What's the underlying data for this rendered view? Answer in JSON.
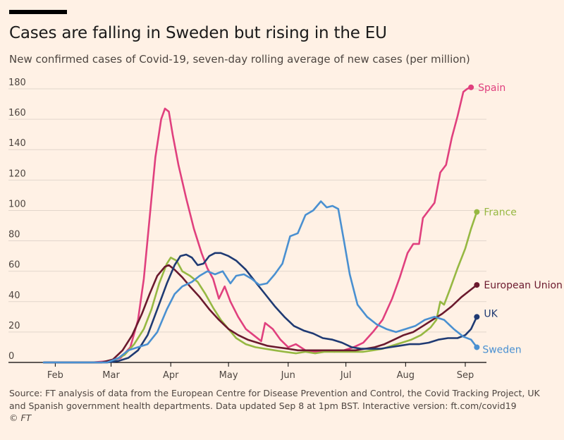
{
  "header": {
    "title": "Cases are falling in Sweden but rising in the EU",
    "subtitle": "New confirmed cases of Covid-19, seven-day rolling average of new cases (per million)"
  },
  "footer": {
    "source": "Source: FT analysis of data from the European Centre for Disease Prevention and Control, the Covid Tracking Project, UK and Spanish government health departments. Data updated Sep 8 at 1pm BST. Interactive version: ft.com/covid19",
    "copyright": "© FT"
  },
  "chart_data": {
    "type": "line",
    "xlabel": "",
    "ylabel": "",
    "ylim": [
      0,
      180
    ],
    "yticks": [
      0,
      20,
      40,
      60,
      80,
      100,
      120,
      140,
      160,
      180
    ],
    "xlim": [
      "2020-01-26",
      "2020-09-12"
    ],
    "xticks": [
      {
        "date": "2020-02-01",
        "label": "Feb"
      },
      {
        "date": "2020-03-01",
        "label": "Mar"
      },
      {
        "date": "2020-04-01",
        "label": "Apr"
      },
      {
        "date": "2020-05-01",
        "label": "May"
      },
      {
        "date": "2020-06-01",
        "label": "Jun"
      },
      {
        "date": "2020-07-01",
        "label": "Jul"
      },
      {
        "date": "2020-08-01",
        "label": "Aug"
      },
      {
        "date": "2020-09-01",
        "label": "Sep"
      }
    ],
    "grid": true,
    "legend": "direct labels at line ends",
    "series": [
      {
        "name": "Spain",
        "color": "#e0407e",
        "points": [
          [
            "2020-01-26",
            0
          ],
          [
            "2020-02-20",
            0
          ],
          [
            "2020-03-01",
            1
          ],
          [
            "2020-03-06",
            3
          ],
          [
            "2020-03-11",
            10
          ],
          [
            "2020-03-15",
            28
          ],
          [
            "2020-03-18",
            55
          ],
          [
            "2020-03-21",
            95
          ],
          [
            "2020-03-24",
            135
          ],
          [
            "2020-03-27",
            160
          ],
          [
            "2020-03-29",
            167
          ],
          [
            "2020-03-31",
            165
          ],
          [
            "2020-04-02",
            150
          ],
          [
            "2020-04-05",
            130
          ],
          [
            "2020-04-09",
            108
          ],
          [
            "2020-04-13",
            88
          ],
          [
            "2020-04-17",
            72
          ],
          [
            "2020-04-20",
            62
          ],
          [
            "2020-04-23",
            55
          ],
          [
            "2020-04-26",
            42
          ],
          [
            "2020-04-29",
            50
          ],
          [
            "2020-05-02",
            40
          ],
          [
            "2020-05-06",
            30
          ],
          [
            "2020-05-10",
            22
          ],
          [
            "2020-05-14",
            18
          ],
          [
            "2020-05-18",
            14
          ],
          [
            "2020-05-20",
            26
          ],
          [
            "2020-05-24",
            22
          ],
          [
            "2020-05-28",
            15
          ],
          [
            "2020-06-01",
            10
          ],
          [
            "2020-06-05",
            12
          ],
          [
            "2020-06-10",
            8
          ],
          [
            "2020-06-15",
            7
          ],
          [
            "2020-06-20",
            8
          ],
          [
            "2020-06-25",
            7
          ],
          [
            "2020-06-30",
            8
          ],
          [
            "2020-07-05",
            10
          ],
          [
            "2020-07-10",
            13
          ],
          [
            "2020-07-15",
            20
          ],
          [
            "2020-07-20",
            28
          ],
          [
            "2020-07-25",
            42
          ],
          [
            "2020-07-29",
            56
          ],
          [
            "2020-08-02",
            72
          ],
          [
            "2020-08-05",
            78
          ],
          [
            "2020-08-08",
            78
          ],
          [
            "2020-08-10",
            95
          ],
          [
            "2020-08-13",
            100
          ],
          [
            "2020-08-16",
            105
          ],
          [
            "2020-08-19",
            125
          ],
          [
            "2020-08-22",
            130
          ],
          [
            "2020-08-25",
            148
          ],
          [
            "2020-08-28",
            162
          ],
          [
            "2020-08-31",
            178
          ],
          [
            "2020-09-02",
            180
          ],
          [
            "2020-09-04",
            181
          ]
        ]
      },
      {
        "name": "France",
        "color": "#96b842",
        "points": [
          [
            "2020-01-26",
            0
          ],
          [
            "2020-02-25",
            0
          ],
          [
            "2020-03-02",
            1
          ],
          [
            "2020-03-08",
            5
          ],
          [
            "2020-03-13",
            12
          ],
          [
            "2020-03-18",
            22
          ],
          [
            "2020-03-22",
            35
          ],
          [
            "2020-03-26",
            52
          ],
          [
            "2020-03-30",
            65
          ],
          [
            "2020-04-01",
            69
          ],
          [
            "2020-04-04",
            67
          ],
          [
            "2020-04-07",
            60
          ],
          [
            "2020-04-11",
            57
          ],
          [
            "2020-04-15",
            53
          ],
          [
            "2020-04-19",
            45
          ],
          [
            "2020-04-23",
            36
          ],
          [
            "2020-04-27",
            28
          ],
          [
            "2020-05-01",
            22
          ],
          [
            "2020-05-05",
            16
          ],
          [
            "2020-05-10",
            12
          ],
          [
            "2020-05-15",
            10
          ],
          [
            "2020-05-20",
            9
          ],
          [
            "2020-05-25",
            8
          ],
          [
            "2020-05-30",
            7
          ],
          [
            "2020-06-05",
            6
          ],
          [
            "2020-06-10",
            7
          ],
          [
            "2020-06-15",
            6
          ],
          [
            "2020-06-20",
            7
          ],
          [
            "2020-06-25",
            7
          ],
          [
            "2020-06-30",
            7
          ],
          [
            "2020-07-05",
            7
          ],
          [
            "2020-07-10",
            7
          ],
          [
            "2020-07-15",
            8
          ],
          [
            "2020-07-20",
            9
          ],
          [
            "2020-07-25",
            11
          ],
          [
            "2020-07-30",
            13
          ],
          [
            "2020-08-04",
            15
          ],
          [
            "2020-08-09",
            18
          ],
          [
            "2020-08-14",
            23
          ],
          [
            "2020-08-17",
            28
          ],
          [
            "2020-08-19",
            40
          ],
          [
            "2020-08-21",
            38
          ],
          [
            "2020-08-24",
            48
          ],
          [
            "2020-08-28",
            62
          ],
          [
            "2020-09-01",
            75
          ],
          [
            "2020-09-04",
            88
          ],
          [
            "2020-09-07",
            99
          ]
        ]
      },
      {
        "name": "European Union",
        "color": "#6b1a2e",
        "points": [
          [
            "2020-01-26",
            0
          ],
          [
            "2020-02-25",
            0
          ],
          [
            "2020-03-02",
            2
          ],
          [
            "2020-03-07",
            8
          ],
          [
            "2020-03-12",
            18
          ],
          [
            "2020-03-17",
            32
          ],
          [
            "2020-03-21",
            45
          ],
          [
            "2020-03-25",
            57
          ],
          [
            "2020-03-29",
            63
          ],
          [
            "2020-03-31",
            64
          ],
          [
            "2020-04-03",
            61
          ],
          [
            "2020-04-07",
            56
          ],
          [
            "2020-04-11",
            50
          ],
          [
            "2020-04-16",
            43
          ],
          [
            "2020-04-21",
            35
          ],
          [
            "2020-04-26",
            28
          ],
          [
            "2020-05-01",
            22
          ],
          [
            "2020-05-06",
            18
          ],
          [
            "2020-05-11",
            15
          ],
          [
            "2020-05-16",
            13
          ],
          [
            "2020-05-21",
            11
          ],
          [
            "2020-05-26",
            10
          ],
          [
            "2020-06-01",
            9
          ],
          [
            "2020-06-06",
            8
          ],
          [
            "2020-06-11",
            8
          ],
          [
            "2020-06-16",
            8
          ],
          [
            "2020-06-21",
            8
          ],
          [
            "2020-06-26",
            8
          ],
          [
            "2020-07-01",
            8
          ],
          [
            "2020-07-06",
            8
          ],
          [
            "2020-07-11",
            9
          ],
          [
            "2020-07-16",
            10
          ],
          [
            "2020-07-21",
            12
          ],
          [
            "2020-07-26",
            15
          ],
          [
            "2020-07-31",
            18
          ],
          [
            "2020-08-05",
            20
          ],
          [
            "2020-08-10",
            24
          ],
          [
            "2020-08-15",
            28
          ],
          [
            "2020-08-20",
            32
          ],
          [
            "2020-08-25",
            37
          ],
          [
            "2020-08-30",
            43
          ],
          [
            "2020-09-04",
            48
          ],
          [
            "2020-09-07",
            51
          ]
        ]
      },
      {
        "name": "UK",
        "color": "#1f3a73",
        "points": [
          [
            "2020-01-26",
            0
          ],
          [
            "2020-02-28",
            0
          ],
          [
            "2020-03-05",
            1
          ],
          [
            "2020-03-10",
            3
          ],
          [
            "2020-03-15",
            8
          ],
          [
            "2020-03-20",
            18
          ],
          [
            "2020-03-25",
            35
          ],
          [
            "2020-03-30",
            52
          ],
          [
            "2020-04-03",
            64
          ],
          [
            "2020-04-06",
            70
          ],
          [
            "2020-04-09",
            71
          ],
          [
            "2020-04-12",
            69
          ],
          [
            "2020-04-15",
            64
          ],
          [
            "2020-04-18",
            65
          ],
          [
            "2020-04-21",
            70
          ],
          [
            "2020-04-24",
            72
          ],
          [
            "2020-04-27",
            72
          ],
          [
            "2020-05-01",
            70
          ],
          [
            "2020-05-05",
            67
          ],
          [
            "2020-05-10",
            61
          ],
          [
            "2020-05-15",
            53
          ],
          [
            "2020-05-20",
            45
          ],
          [
            "2020-05-25",
            37
          ],
          [
            "2020-05-30",
            30
          ],
          [
            "2020-06-04",
            24
          ],
          [
            "2020-06-09",
            21
          ],
          [
            "2020-06-14",
            19
          ],
          [
            "2020-06-19",
            16
          ],
          [
            "2020-06-24",
            15
          ],
          [
            "2020-06-29",
            13
          ],
          [
            "2020-07-04",
            10
          ],
          [
            "2020-07-09",
            9
          ],
          [
            "2020-07-14",
            9
          ],
          [
            "2020-07-19",
            9
          ],
          [
            "2020-07-24",
            10
          ],
          [
            "2020-07-29",
            11
          ],
          [
            "2020-08-03",
            12
          ],
          [
            "2020-08-08",
            12
          ],
          [
            "2020-08-13",
            13
          ],
          [
            "2020-08-18",
            15
          ],
          [
            "2020-08-23",
            16
          ],
          [
            "2020-08-28",
            16
          ],
          [
            "2020-09-01",
            18
          ],
          [
            "2020-09-04",
            22
          ],
          [
            "2020-09-07",
            30
          ]
        ]
      },
      {
        "name": "Sweden",
        "color": "#4a90d1",
        "points": [
          [
            "2020-01-26",
            0
          ],
          [
            "2020-02-28",
            0
          ],
          [
            "2020-03-05",
            3
          ],
          [
            "2020-03-10",
            8
          ],
          [
            "2020-03-15",
            10
          ],
          [
            "2020-03-20",
            12
          ],
          [
            "2020-03-25",
            20
          ],
          [
            "2020-03-30",
            35
          ],
          [
            "2020-04-03",
            45
          ],
          [
            "2020-04-07",
            50
          ],
          [
            "2020-04-12",
            53
          ],
          [
            "2020-04-16",
            57
          ],
          [
            "2020-04-20",
            60
          ],
          [
            "2020-04-24",
            58
          ],
          [
            "2020-04-28",
            60
          ],
          [
            "2020-05-02",
            52
          ],
          [
            "2020-05-05",
            57
          ],
          [
            "2020-05-09",
            58
          ],
          [
            "2020-05-13",
            55
          ],
          [
            "2020-05-17",
            51
          ],
          [
            "2020-05-21",
            52
          ],
          [
            "2020-05-25",
            58
          ],
          [
            "2020-05-29",
            65
          ],
          [
            "2020-06-02",
            83
          ],
          [
            "2020-06-06",
            85
          ],
          [
            "2020-06-10",
            97
          ],
          [
            "2020-06-14",
            100
          ],
          [
            "2020-06-18",
            106
          ],
          [
            "2020-06-21",
            102
          ],
          [
            "2020-06-24",
            103
          ],
          [
            "2020-06-27",
            101
          ],
          [
            "2020-06-30",
            80
          ],
          [
            "2020-07-03",
            58
          ],
          [
            "2020-07-07",
            38
          ],
          [
            "2020-07-12",
            30
          ],
          [
            "2020-07-17",
            25
          ],
          [
            "2020-07-22",
            22
          ],
          [
            "2020-07-27",
            20
          ],
          [
            "2020-08-01",
            22
          ],
          [
            "2020-08-06",
            24
          ],
          [
            "2020-08-11",
            28
          ],
          [
            "2020-08-16",
            30
          ],
          [
            "2020-08-21",
            28
          ],
          [
            "2020-08-26",
            22
          ],
          [
            "2020-08-31",
            17
          ],
          [
            "2020-09-04",
            15
          ],
          [
            "2020-09-07",
            10
          ]
        ]
      }
    ]
  }
}
